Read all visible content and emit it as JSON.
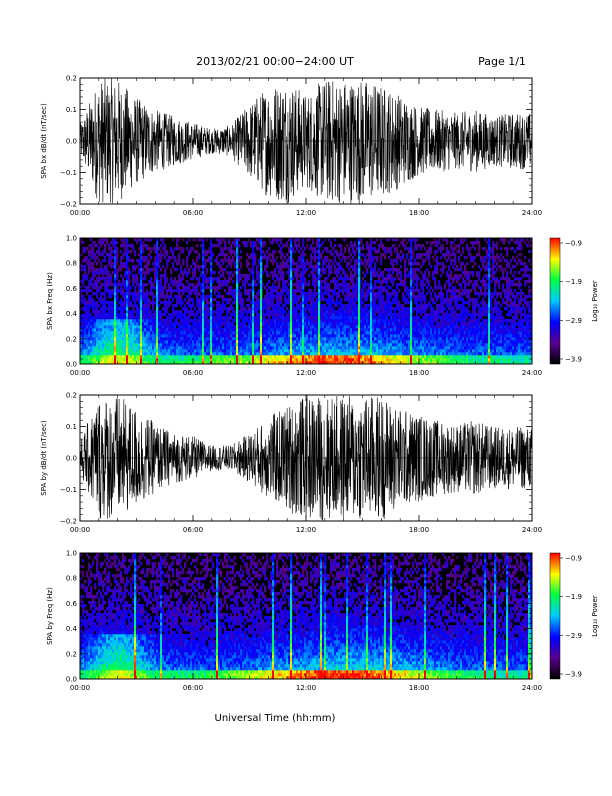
{
  "header": {
    "title": "2013/02/21   00:00−24:00 UT",
    "page": "Page 1/1"
  },
  "footer": {
    "xlabel": "Universal Time (hh:mm)"
  },
  "colors": {
    "frame": "#000000",
    "trace": "#000000",
    "spectrogram_bg": "#000000"
  },
  "chart_data": [
    {
      "type": "line",
      "ylabel": "SPA bx dB/dt (nT/sec)",
      "xlim": [
        0,
        24
      ],
      "ylim": [
        -0.2,
        0.2
      ],
      "xticks": [
        "00:00",
        "06:00",
        "12:00",
        "18:00",
        "24:00"
      ],
      "yticks": [
        "0.2",
        "0.1",
        "0.0",
        "−0.1",
        "−0.2"
      ],
      "series": [
        {
          "x": [
            0,
            1,
            2,
            3,
            4,
            5,
            6,
            7,
            8,
            9,
            10,
            11,
            12,
            13,
            14,
            15,
            16,
            17,
            18,
            19,
            20,
            21,
            22,
            23,
            24
          ],
          "values": [
            0.05,
            0.2,
            0.2,
            0.14,
            0.1,
            0.08,
            0.06,
            0.04,
            0.05,
            0.12,
            0.18,
            0.2,
            0.15,
            0.2,
            0.2,
            0.2,
            0.18,
            0.15,
            0.11,
            0.1,
            0.09,
            0.1,
            0.08,
            0.09,
            0.09
          ]
        }
      ]
    },
    {
      "type": "heatmap",
      "ylabel": "SPA bx Freq (Hz)",
      "xlim": [
        0,
        24
      ],
      "ylim": [
        0,
        1.0
      ],
      "xticks": [
        "00:00",
        "06:00",
        "12:00",
        "18:00",
        "24:00"
      ],
      "yticks": [
        "1.0",
        "0.8",
        "0.6",
        "0.4",
        "0.2",
        "0.0"
      ],
      "colorbar": {
        "label": "Log₁₀ Power",
        "range": [
          -3.9,
          -0.9
        ],
        "ticks": [
          "−0.9",
          "−1.9",
          "−2.9",
          "−3.9"
        ]
      }
    },
    {
      "type": "line",
      "ylabel": "SPA by dB/dt (nT/sec)",
      "xlim": [
        0,
        24
      ],
      "ylim": [
        -0.2,
        0.2
      ],
      "xticks": [
        "00:00",
        "06:00",
        "12:00",
        "18:00",
        "24:00"
      ],
      "yticks": [
        "0.2",
        "0.1",
        "0.0",
        "−0.1",
        "−0.2"
      ],
      "series": [
        {
          "x": [
            0,
            1,
            2,
            3,
            4,
            5,
            6,
            7,
            8,
            9,
            10,
            11,
            12,
            13,
            14,
            15,
            16,
            17,
            18,
            19,
            20,
            21,
            22,
            23,
            24
          ],
          "values": [
            0.05,
            0.2,
            0.2,
            0.16,
            0.11,
            0.08,
            0.07,
            0.04,
            0.04,
            0.08,
            0.13,
            0.17,
            0.2,
            0.2,
            0.2,
            0.2,
            0.2,
            0.16,
            0.14,
            0.12,
            0.11,
            0.12,
            0.1,
            0.1,
            0.1
          ]
        }
      ]
    },
    {
      "type": "heatmap",
      "ylabel": "SPA by Freq (Hz)",
      "xlim": [
        0,
        24
      ],
      "ylim": [
        0,
        1.0
      ],
      "xticks": [
        "00:00",
        "06:00",
        "12:00",
        "18:00",
        "24:00"
      ],
      "yticks": [
        "1.0",
        "0.8",
        "0.6",
        "0.4",
        "0.2",
        "0.0"
      ],
      "colorbar": {
        "label": "Log₁₀ Power",
        "range": [
          -3.9,
          -0.9
        ],
        "ticks": [
          "−0.9",
          "−1.9",
          "−2.9",
          "−3.9"
        ]
      }
    }
  ]
}
